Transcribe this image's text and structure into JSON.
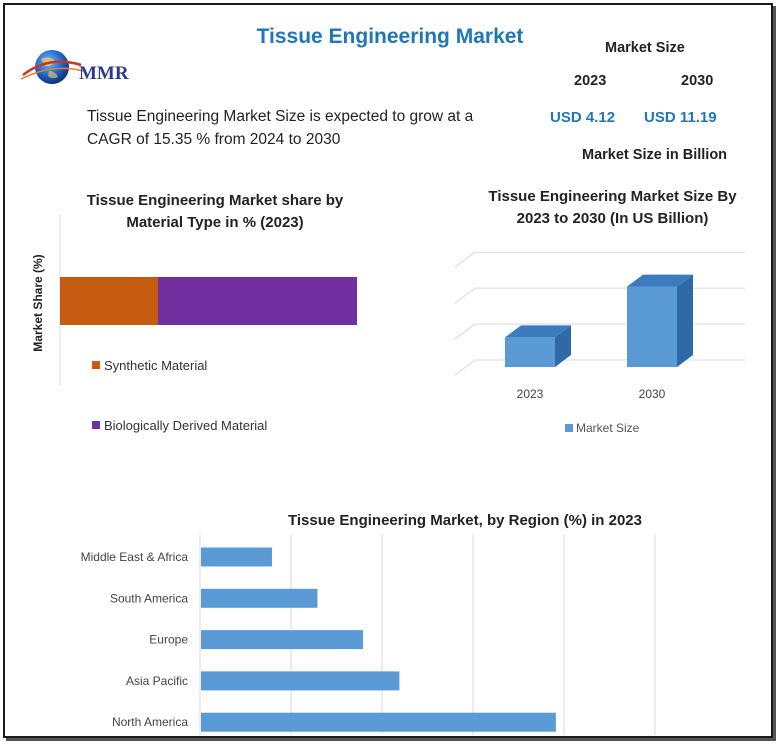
{
  "header": {
    "title": "Tissue Engineering Market",
    "logo_text": "MMR"
  },
  "description": "Tissue Engineering Market Size is expected to grow at a CAGR of 15.35 % from 2024 to 2030",
  "market_size": {
    "title": "Market Size",
    "years": [
      "2023",
      "2030"
    ],
    "values": [
      "USD 4.12",
      "USD 11.19"
    ],
    "unit": "Market Size in Billion"
  },
  "colors": {
    "title_blue": "#1f77b8",
    "synthetic": "#c55a11",
    "biological": "#7030a0",
    "bar_blue": "#5b9bd5"
  },
  "chart_data": [
    {
      "type": "bar",
      "orientation": "horizontal-stacked",
      "title": "Tissue Engineering Market share by Material Type in % (2023)",
      "ylabel": "Market Share (%)",
      "series": [
        {
          "name": "Synthetic Material",
          "values": [
            33
          ]
        },
        {
          "name": "Biologically Derived Material",
          "values": [
            67
          ]
        }
      ],
      "legend_position": "bottom"
    },
    {
      "type": "bar",
      "orientation": "vertical-3d",
      "title": "Tissue Engineering Market Size By 2023 to 2030 (In US Billion)",
      "categories": [
        "2023",
        "2030"
      ],
      "series": [
        {
          "name": "Market Size",
          "values": [
            4.12,
            11.19
          ]
        }
      ],
      "ylim": [
        0,
        16
      ],
      "grid": true,
      "legend_position": "bottom"
    },
    {
      "type": "bar",
      "orientation": "horizontal",
      "title": "Tissue Engineering Market,  by Region (%) in 2023",
      "categories": [
        "Middle East & Africa",
        "South America",
        "Europe",
        "Asia Pacific",
        "North America"
      ],
      "values": [
        7.8,
        12.8,
        17.8,
        21.8,
        39.0
      ],
      "xlim": [
        0,
        50
      ],
      "grid": true
    }
  ]
}
